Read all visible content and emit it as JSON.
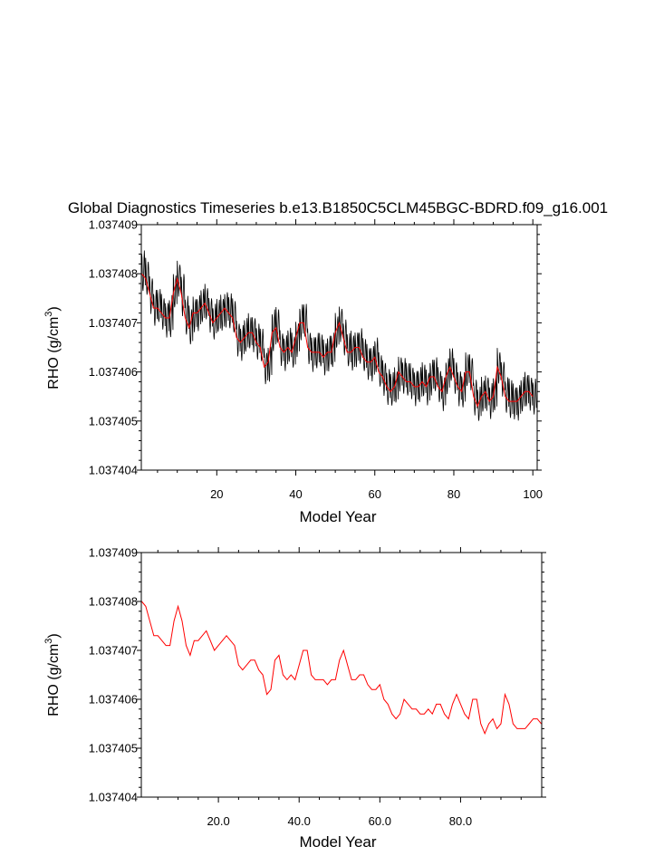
{
  "title": "Global Diagnostics Timeseries b.e13.B1850C5CLM45BGC-BDRD.f09_g16.001",
  "colors": {
    "monthly": "#000000",
    "annual": "#ff0000",
    "frame": "#000000"
  },
  "chart_data": [
    {
      "type": "line",
      "xlabel": "Model Year",
      "ylabel": "RHO (g/cm",
      "ylabel_sup": "3",
      "ylabel_close": ")",
      "xlim": [
        0.9,
        101.1
      ],
      "ylim": [
        1.037404,
        1.037409
      ],
      "xticks": [
        20,
        40,
        60,
        80,
        100
      ],
      "xtick_labels": [
        "20",
        "40",
        "60",
        "80",
        "100"
      ],
      "yticks": [
        1.037404,
        1.037405,
        1.037406,
        1.037407,
        1.037408,
        1.037409
      ],
      "ytick_labels": [
        "1.037404",
        "1.037405",
        "1.037406",
        "1.037407",
        "1.037408",
        "1.037409"
      ],
      "series": [
        {
          "kind": "monthly",
          "color": "#000000",
          "note_x_start": 1,
          "x_step": 0.08333,
          "amplitudes": [
            9.5e-07,
            8.5e-07,
            8.5e-07,
            8e-07,
            8e-07,
            8e-07,
            8e-07,
            9.5e-07,
            8e-07,
            8e-07,
            9.5e-07,
            9e-07,
            9e-07,
            8e-07,
            8e-07,
            8e-07,
            8e-07,
            8e-07,
            8e-07,
            8e-07,
            8e-07,
            8e-07,
            8e-07,
            8e-07,
            8e-07,
            8e-07,
            8e-07,
            8e-07,
            8e-07,
            8e-07,
            8e-07,
            8e-07,
            8e-07,
            9.5e-07,
            8.5e-07,
            8e-07,
            8e-07,
            8e-07,
            8e-07,
            8e-07,
            8e-07,
            8e-07,
            8e-07,
            8e-07,
            8e-07,
            8e-07,
            8e-07,
            8e-07,
            8e-07,
            8e-07,
            8e-07,
            8e-07,
            8e-07,
            9e-07,
            8e-07,
            8e-07,
            8e-07,
            8e-07,
            8e-07,
            8e-07,
            8e-07,
            8e-07,
            8e-07,
            8e-07,
            8e-07,
            8e-07,
            8e-07,
            8e-07,
            8e-07,
            8e-07,
            8e-07,
            8e-07,
            8e-07,
            8e-07,
            8e-07,
            8e-07,
            8e-07,
            8e-07,
            8e-07,
            8e-07,
            8e-07,
            8e-07,
            8e-07,
            8e-07,
            8e-07,
            8e-07,
            8e-07,
            8e-07,
            8e-07,
            8e-07,
            8e-07,
            8e-07,
            8e-07,
            9.5e-07,
            8e-07,
            8e-07,
            8e-07,
            8e-07,
            8e-07,
            8e-07
          ]
        },
        {
          "kind": "annual",
          "color": "#ff0000",
          "x": [
            1,
            2,
            3,
            4,
            5,
            6,
            7,
            8,
            9,
            10,
            11,
            12,
            13,
            14,
            15,
            16,
            17,
            18,
            19,
            20,
            21,
            22,
            23,
            24,
            25,
            26,
            27,
            28,
            29,
            30,
            31,
            32,
            33,
            34,
            35,
            36,
            37,
            38,
            39,
            40,
            41,
            42,
            43,
            44,
            45,
            46,
            47,
            48,
            49,
            50,
            51,
            52,
            53,
            54,
            55,
            56,
            57,
            58,
            59,
            60,
            61,
            62,
            63,
            64,
            65,
            66,
            67,
            68,
            69,
            70,
            71,
            72,
            73,
            74,
            75,
            76,
            77,
            78,
            79,
            80,
            81,
            82,
            83,
            84,
            85,
            86,
            87,
            88,
            89,
            90,
            91,
            92,
            93,
            94,
            95,
            96,
            97,
            98,
            99,
            100
          ],
          "y": [
            1.037408,
            1.0374079,
            1.0374076,
            1.0374073,
            1.0374073,
            1.0374072,
            1.0374071,
            1.0374071,
            1.0374076,
            1.0374079,
            1.0374076,
            1.0374071,
            1.0374069,
            1.0374072,
            1.0374072,
            1.0374073,
            1.0374074,
            1.0374072,
            1.037407,
            1.0374071,
            1.0374072,
            1.0374073,
            1.0374072,
            1.0374071,
            1.0374067,
            1.0374066,
            1.0374067,
            1.0374068,
            1.0374068,
            1.0374066,
            1.0374065,
            1.0374061,
            1.0374062,
            1.0374068,
            1.0374069,
            1.0374065,
            1.0374064,
            1.0374065,
            1.0374064,
            1.0374067,
            1.037407,
            1.037407,
            1.0374065,
            1.0374064,
            1.0374064,
            1.0374064,
            1.0374063,
            1.0374064,
            1.0374064,
            1.0374068,
            1.037407,
            1.0374067,
            1.0374064,
            1.0374064,
            1.0374065,
            1.0374065,
            1.0374063,
            1.0374062,
            1.0374062,
            1.0374063,
            1.037406,
            1.0374059,
            1.0374057,
            1.0374056,
            1.0374057,
            1.037406,
            1.0374059,
            1.0374058,
            1.0374058,
            1.0374057,
            1.0374057,
            1.0374058,
            1.0374057,
            1.0374059,
            1.0374059,
            1.0374057,
            1.0374056,
            1.0374059,
            1.0374061,
            1.0374059,
            1.0374057,
            1.0374056,
            1.037406,
            1.037406,
            1.0374055,
            1.0374053,
            1.0374055,
            1.0374056,
            1.0374054,
            1.0374055,
            1.0374061,
            1.0374059,
            1.0374055,
            1.0374054,
            1.0374054,
            1.0374054,
            1.0374055,
            1.0374056,
            1.0374056,
            1.0374055
          ]
        }
      ]
    },
    {
      "type": "line",
      "xlabel": "Model Year",
      "ylabel": "RHO (g/cm",
      "ylabel_sup": "3",
      "ylabel_close": ")",
      "xlim": [
        0.9,
        100.1
      ],
      "ylim": [
        1.037404,
        1.037409
      ],
      "xticks": [
        20,
        40,
        60,
        80
      ],
      "xtick_labels": [
        "20.0",
        "40.0",
        "60.0",
        "80.0"
      ],
      "yticks": [
        1.037404,
        1.037405,
        1.037406,
        1.037407,
        1.037408,
        1.037409
      ],
      "ytick_labels": [
        "1.037404",
        "1.037405",
        "1.037406",
        "1.037407",
        "1.037408",
        "1.037409"
      ],
      "series": [
        {
          "kind": "annual",
          "color": "#ff0000",
          "x": [
            1,
            2,
            3,
            4,
            5,
            6,
            7,
            8,
            9,
            10,
            11,
            12,
            13,
            14,
            15,
            16,
            17,
            18,
            19,
            20,
            21,
            22,
            23,
            24,
            25,
            26,
            27,
            28,
            29,
            30,
            31,
            32,
            33,
            34,
            35,
            36,
            37,
            38,
            39,
            40,
            41,
            42,
            43,
            44,
            45,
            46,
            47,
            48,
            49,
            50,
            51,
            52,
            53,
            54,
            55,
            56,
            57,
            58,
            59,
            60,
            61,
            62,
            63,
            64,
            65,
            66,
            67,
            68,
            69,
            70,
            71,
            72,
            73,
            74,
            75,
            76,
            77,
            78,
            79,
            80,
            81,
            82,
            83,
            84,
            85,
            86,
            87,
            88,
            89,
            90,
            91,
            92,
            93,
            94,
            95,
            96,
            97,
            98,
            99,
            100
          ],
          "y": [
            1.037408,
            1.0374079,
            1.0374076,
            1.0374073,
            1.0374073,
            1.0374072,
            1.0374071,
            1.0374071,
            1.0374076,
            1.0374079,
            1.0374076,
            1.0374071,
            1.0374069,
            1.0374072,
            1.0374072,
            1.0374073,
            1.0374074,
            1.0374072,
            1.037407,
            1.0374071,
            1.0374072,
            1.0374073,
            1.0374072,
            1.0374071,
            1.0374067,
            1.0374066,
            1.0374067,
            1.0374068,
            1.0374068,
            1.0374066,
            1.0374065,
            1.0374061,
            1.0374062,
            1.0374068,
            1.0374069,
            1.0374065,
            1.0374064,
            1.0374065,
            1.0374064,
            1.0374067,
            1.037407,
            1.037407,
            1.0374065,
            1.0374064,
            1.0374064,
            1.0374064,
            1.0374063,
            1.0374064,
            1.0374064,
            1.0374068,
            1.037407,
            1.0374067,
            1.0374064,
            1.0374064,
            1.0374065,
            1.0374065,
            1.0374063,
            1.0374062,
            1.0374062,
            1.0374063,
            1.037406,
            1.0374059,
            1.0374057,
            1.0374056,
            1.0374057,
            1.037406,
            1.0374059,
            1.0374058,
            1.0374058,
            1.0374057,
            1.0374057,
            1.0374058,
            1.0374057,
            1.0374059,
            1.0374059,
            1.0374057,
            1.0374056,
            1.0374059,
            1.0374061,
            1.0374059,
            1.0374057,
            1.0374056,
            1.037406,
            1.037406,
            1.0374055,
            1.0374053,
            1.0374055,
            1.0374056,
            1.0374054,
            1.0374055,
            1.0374061,
            1.0374059,
            1.0374055,
            1.0374054,
            1.0374054,
            1.0374054,
            1.0374055,
            1.0374056,
            1.0374056,
            1.0374055
          ]
        }
      ]
    }
  ]
}
